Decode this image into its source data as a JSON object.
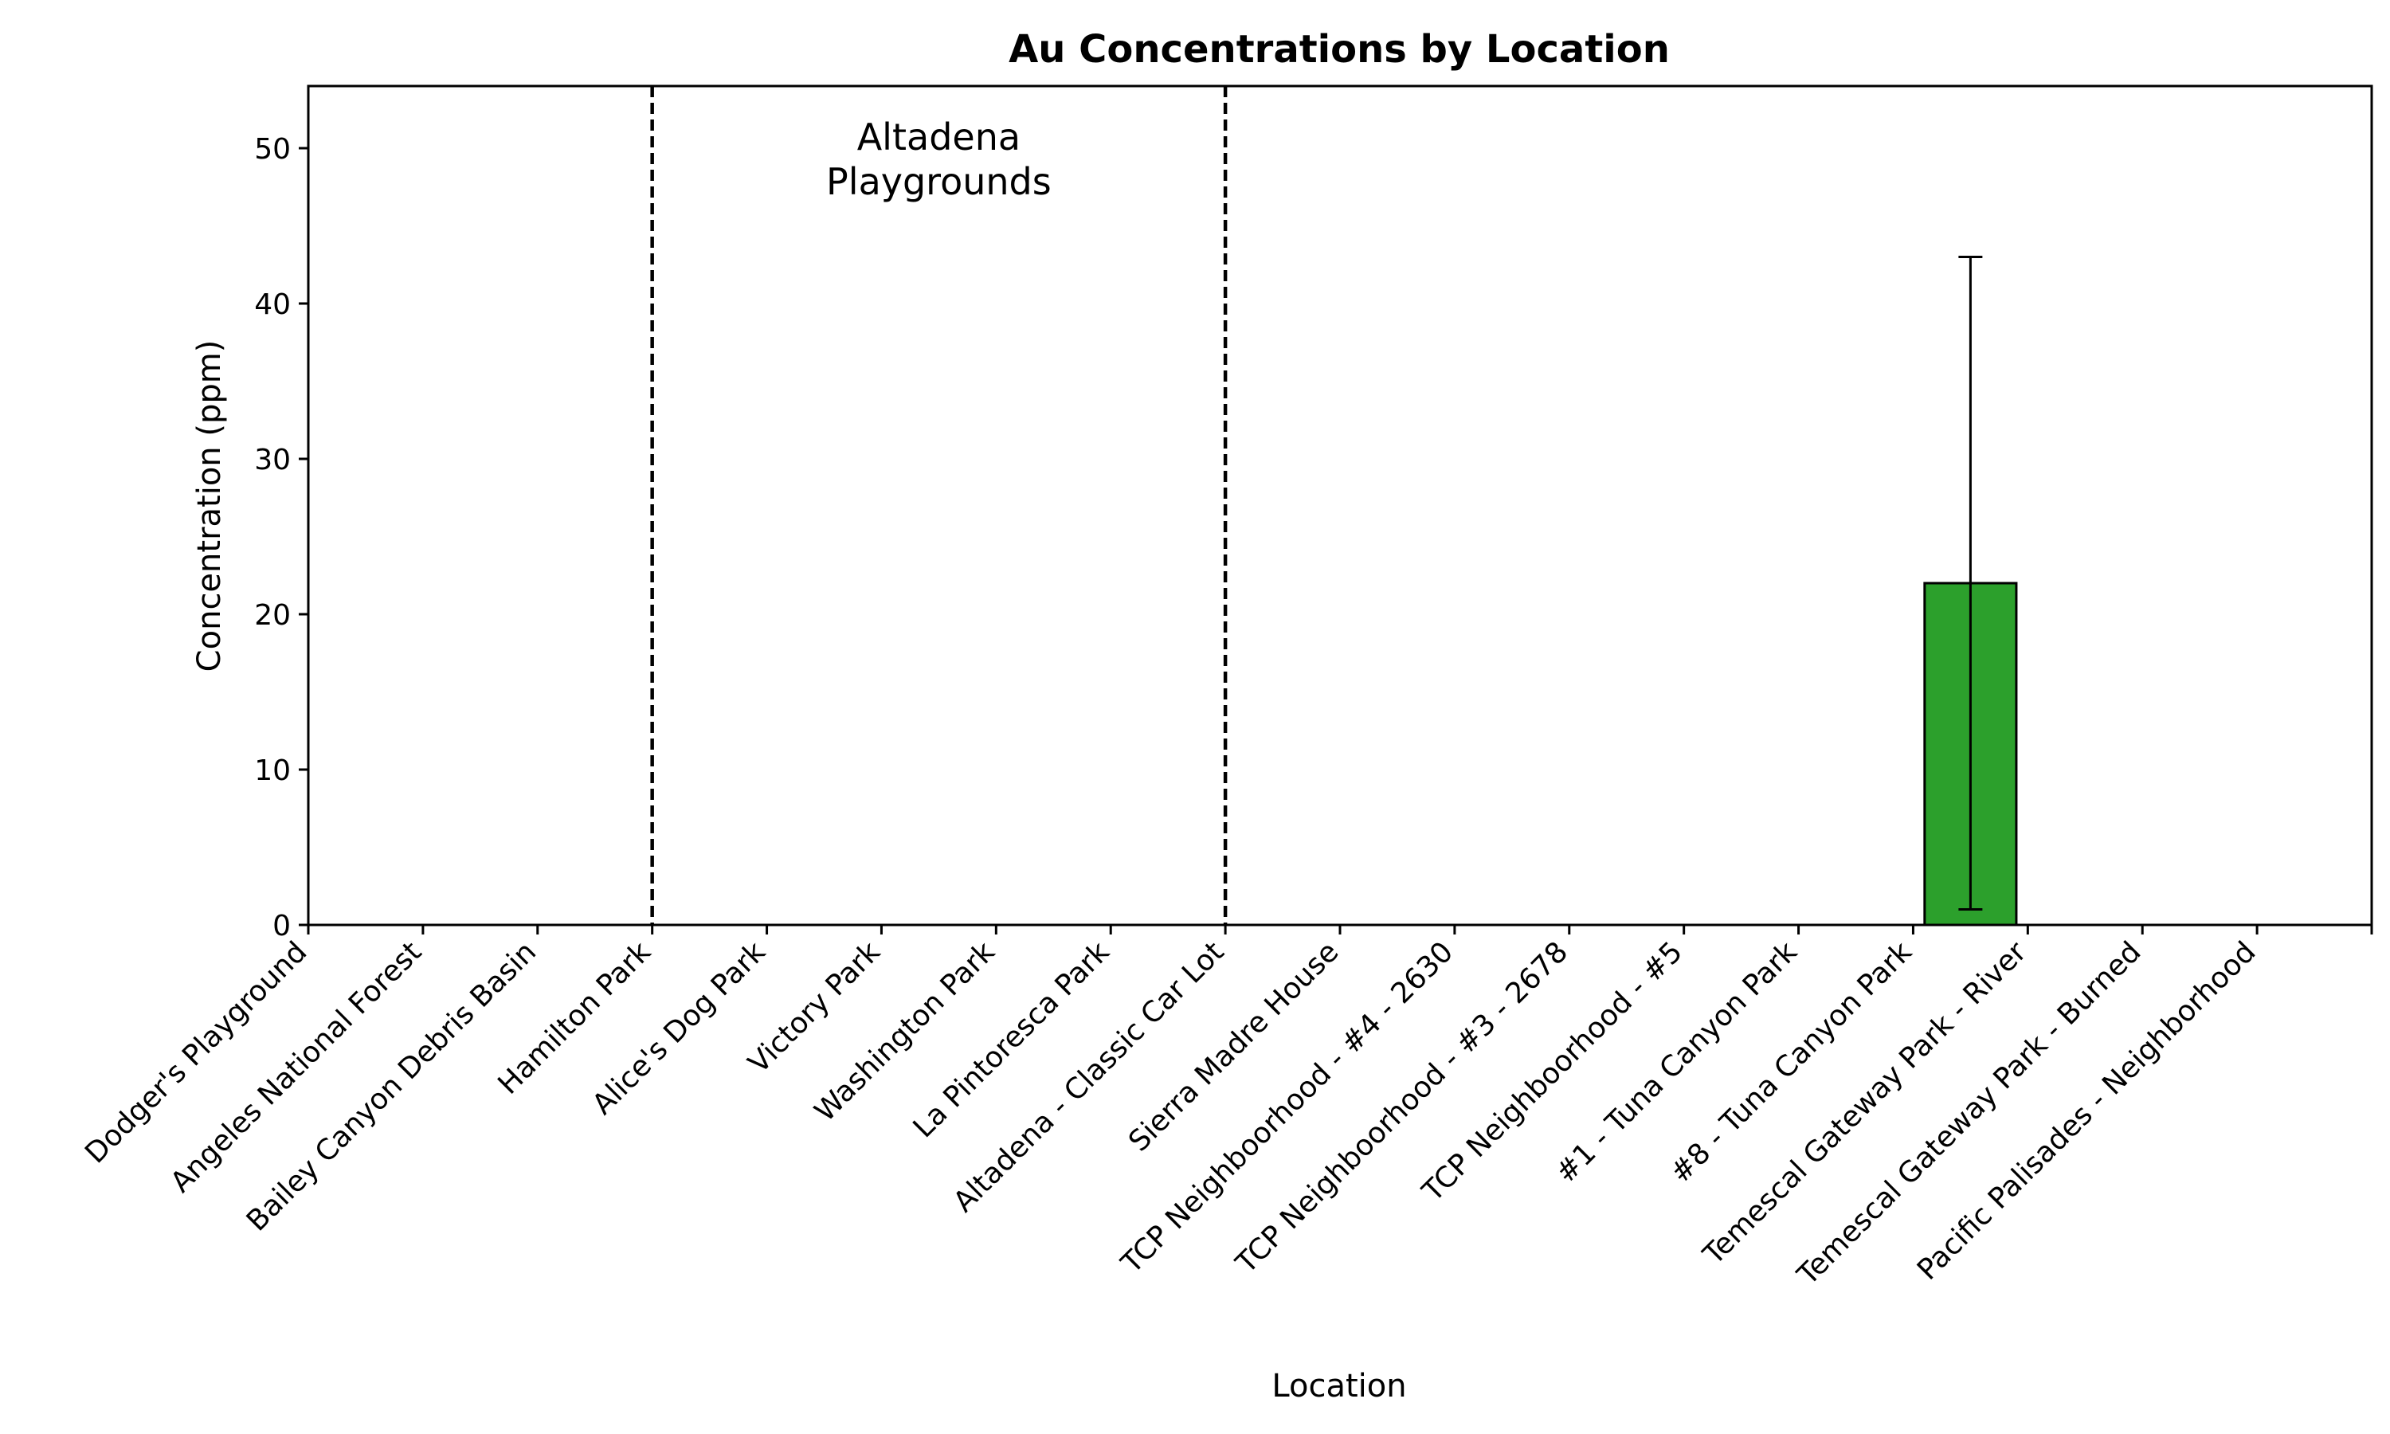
{
  "chart_data": {
    "type": "bar",
    "title": "Au Concentrations by Location",
    "xlabel": "Location",
    "ylabel": "Concentration (ppm)",
    "ylim": [
      0,
      54
    ],
    "yticks": [
      0,
      10,
      20,
      30,
      40,
      50
    ],
    "categories": [
      "Dodger's Playground",
      "Angeles National Forest",
      "Bailey Canyon Debris Basin",
      "Hamilton Park",
      "Alice's Dog Park",
      "Victory Park",
      "Washington Park",
      "La Pintoresca Park",
      "Altadena - Classic Car Lot",
      "Sierra Madre House",
      "TCP Neighboorhood - #4 - 2630",
      "TCP Neighboorhood - #3 - 2678",
      "TCP Neighboorhood - #5",
      "#1 - Tuna Canyon Park",
      "#8 - Tuna Canyon Park",
      "Temescal Gateway Park - River",
      "Temescal Gateway Park - Burned",
      "Pacific Palisades - Neighborhood"
    ],
    "values": [
      0,
      0,
      0,
      0,
      0,
      0,
      0,
      0,
      0,
      0,
      0,
      0,
      0,
      0,
      22,
      0,
      0,
      0
    ],
    "error_low": [
      null,
      null,
      null,
      null,
      null,
      null,
      null,
      null,
      null,
      null,
      null,
      null,
      null,
      null,
      1,
      null,
      null,
      null
    ],
    "error_high": [
      null,
      null,
      null,
      null,
      null,
      null,
      null,
      null,
      null,
      null,
      null,
      null,
      null,
      null,
      43,
      null,
      null,
      null
    ],
    "bar_color": "#2ca02c",
    "grid": false,
    "region_dividers_after_index": [
      2,
      7
    ],
    "annotation": {
      "lines": [
        "Altadena",
        "Playgrounds"
      ]
    }
  }
}
